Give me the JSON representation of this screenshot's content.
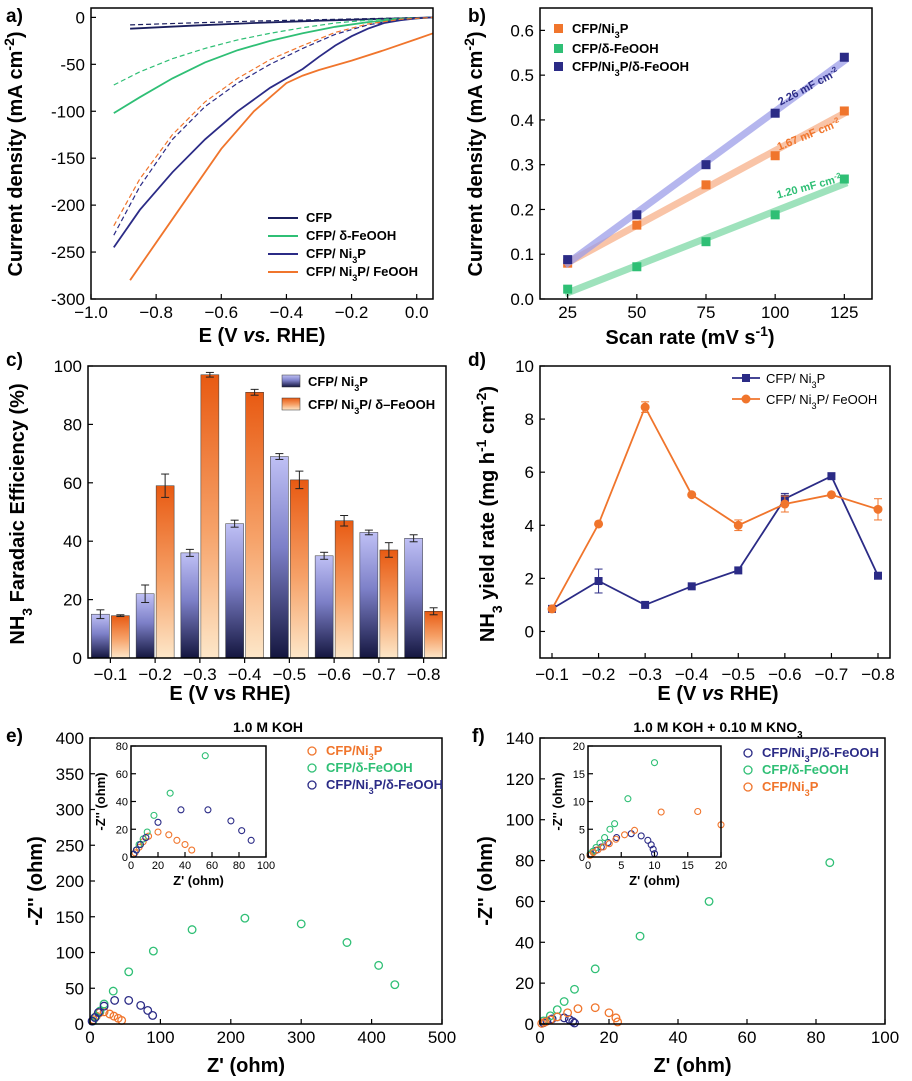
{
  "colors": {
    "navy": "#1b1f5e",
    "navy2": "#2b2b86",
    "green": "#2fbf75",
    "green_light": "#7dd8a6",
    "orange": "#f0752c",
    "orange_light": "#f7b08a",
    "purple_light": "#9c9ee8",
    "black": "#000000"
  },
  "chart_data": [
    {
      "panel": "a)",
      "type": "line",
      "xlabel": "E (V vs. RHE)",
      "ylabel": "Current density (mA cm-2)",
      "xlim": [
        -1.0,
        0.05
      ],
      "ylim": [
        -300,
        10
      ],
      "xticks": [
        "-1.0",
        "-0.8",
        "-0.6",
        "-0.4",
        "-0.2",
        "0.0"
      ],
      "yticks": [
        "0",
        "-50",
        "-100",
        "-150",
        "-200",
        "-250",
        "-300"
      ],
      "legend": [
        "CFP",
        "CFP/ δ-FeOOH",
        "CFP/ Ni3P",
        "CFP/ Ni3P/ FeOOH"
      ],
      "series": [
        {
          "name": "CFP",
          "color": "navy",
          "dash": false,
          "x": [
            -0.88,
            -0.7,
            -0.5,
            -0.3,
            -0.1,
            0.0,
            0.05
          ],
          "y": [
            -12,
            -9,
            -6,
            -3.5,
            -1.5,
            -0.5,
            0
          ]
        },
        {
          "name": "CFP",
          "color": "navy",
          "dash": true,
          "x": [
            -0.88,
            -0.7,
            -0.5,
            -0.3,
            -0.1,
            0.0,
            0.05
          ],
          "y": [
            -8,
            -6,
            -4,
            -2.5,
            -1,
            -0.3,
            0
          ]
        },
        {
          "name": "CFP/ δ-FeOOH",
          "color": "green",
          "dash": false,
          "x": [
            -0.93,
            -0.85,
            -0.75,
            -0.65,
            -0.55,
            -0.45,
            -0.35,
            -0.25,
            -0.15,
            -0.05,
            0.05
          ],
          "y": [
            -102,
            -85,
            -65,
            -48,
            -35,
            -25,
            -17,
            -10,
            -5,
            -2,
            0
          ]
        },
        {
          "name": "CFP/ δ-FeOOH",
          "color": "green",
          "dash": true,
          "x": [
            -0.93,
            -0.85,
            -0.75,
            -0.65,
            -0.55,
            -0.45,
            -0.35,
            -0.25,
            -0.15,
            -0.05,
            0.05
          ],
          "y": [
            -72,
            -58,
            -44,
            -33,
            -24,
            -17,
            -11,
            -6,
            -3,
            -1,
            0
          ]
        },
        {
          "name": "CFP/ Ni3P",
          "color": "navy2",
          "dash": false,
          "x": [
            -0.93,
            -0.85,
            -0.75,
            -0.65,
            -0.55,
            -0.45,
            -0.4,
            -0.35,
            -0.3,
            -0.25,
            -0.2,
            -0.15,
            -0.1,
            -0.05,
            0.0,
            0.05
          ],
          "y": [
            -245,
            -205,
            -165,
            -130,
            -100,
            -75,
            -65,
            -55,
            -42,
            -30,
            -20,
            -12,
            -6,
            -3,
            -1,
            0
          ]
        },
        {
          "name": "CFP/ Ni3P",
          "color": "navy2",
          "dash": true,
          "x": [
            -0.93,
            -0.85,
            -0.75,
            -0.65,
            -0.55,
            -0.45,
            -0.35,
            -0.25,
            -0.15,
            -0.05,
            0.05
          ],
          "y": [
            -232,
            -180,
            -130,
            -95,
            -70,
            -50,
            -33,
            -18,
            -8,
            -2,
            0
          ]
        },
        {
          "name": "CFP/ Ni3P/ FeOOH",
          "color": "orange",
          "dash": false,
          "x": [
            -0.88,
            -0.8,
            -0.7,
            -0.6,
            -0.5,
            -0.4,
            -0.35,
            -0.3,
            -0.2,
            -0.1,
            0.0,
            0.05
          ],
          "y": [
            -280,
            -240,
            -190,
            -140,
            -100,
            -70,
            -62,
            -56,
            -46,
            -35,
            -23,
            -17
          ]
        },
        {
          "name": "CFP/ Ni3P/ FeOOH",
          "color": "orange",
          "dash": true,
          "x": [
            -0.93,
            -0.85,
            -0.75,
            -0.65,
            -0.55,
            -0.45,
            -0.35,
            -0.25,
            -0.15,
            -0.05,
            0.05
          ],
          "y": [
            -222,
            -172,
            -125,
            -90,
            -65,
            -45,
            -30,
            -16,
            -7,
            -2,
            0
          ]
        }
      ]
    },
    {
      "panel": "b)",
      "type": "scatter",
      "xlabel": "Scan rate (mV s-1)",
      "ylabel": "Current density (mA cm-2)",
      "xlim": [
        15,
        135
      ],
      "ylim": [
        0,
        0.65
      ],
      "xticks": [
        "25",
        "50",
        "75",
        "100",
        "125"
      ],
      "yticks": [
        "0.0",
        "0.1",
        "0.2",
        "0.3",
        "0.4",
        "0.5",
        "0.6"
      ],
      "x": [
        25,
        50,
        75,
        100,
        125
      ],
      "legend": [
        "CFP/Ni3P",
        "CFP/δ-FeOOH",
        "CFP/Ni3P/δ-FeOOH"
      ],
      "series": [
        {
          "name": "CFP/Ni3P",
          "color": "orange",
          "fit_color": "orange_light",
          "y": [
            0.08,
            0.165,
            0.255,
            0.32,
            0.42
          ],
          "annotation": "1.67 mF cm-2"
        },
        {
          "name": "CFP/δ-FeOOH",
          "color": "green",
          "fit_color": "green_light",
          "y": [
            0.022,
            0.072,
            0.128,
            0.188,
            0.268
          ],
          "annotation": "1.20 mF cm-2"
        },
        {
          "name": "CFP/Ni3P/δ-FeOOH",
          "color": "navy2",
          "fit_color": "purple_light",
          "y": [
            0.088,
            0.188,
            0.3,
            0.415,
            0.54
          ],
          "annotation": "2.26 mF cm-2"
        }
      ]
    },
    {
      "panel": "c)",
      "type": "bar",
      "xlabel": "E (V vs RHE)",
      "ylabel": "NH3 Faradaic Efficiency (%)",
      "ylim": [
        0,
        100
      ],
      "categories": [
        "-0.1",
        "-0.2",
        "-0.3",
        "-0.4",
        "-0.5",
        "-0.6",
        "-0.7",
        "-0.8"
      ],
      "yticks": [
        "0",
        "20",
        "40",
        "60",
        "80",
        "100"
      ],
      "legend": [
        "CFP/ Ni3P",
        "CFP/ Ni3P/ δ–FeOOH"
      ],
      "series": [
        {
          "name": "CFP/ Ni3P",
          "values": [
            15,
            22,
            36,
            46,
            69,
            35,
            43,
            41
          ],
          "errors": [
            1.5,
            3,
            1.2,
            1.2,
            1,
            1.2,
            0.8,
            1.2
          ]
        },
        {
          "name": "CFP/ Ni3P/ δ–FeOOH",
          "values": [
            14.5,
            59,
            97,
            91,
            61,
            47,
            37,
            16
          ],
          "errors": [
            0.3,
            4,
            0.8,
            1,
            3,
            1.8,
            2.5,
            1.2
          ]
        }
      ]
    },
    {
      "panel": "d)",
      "type": "line",
      "xlabel": "E (V vs RHE)",
      "ylabel": "NH3 yield rate (mg h-1 cm-2)",
      "ylim": [
        -1,
        10
      ],
      "categories": [
        "-0.1",
        "-0.2",
        "-0.3",
        "-0.4",
        "-0.5",
        "-0.6",
        "-0.7",
        "-0.8"
      ],
      "yticks": [
        "0",
        "2",
        "4",
        "6",
        "8",
        "10"
      ],
      "legend": [
        "CFP/ Ni3P",
        "CFP/ Ni3P/ FeOOH"
      ],
      "series": [
        {
          "name": "CFP/ Ni3P",
          "color": "navy2",
          "marker": "square",
          "values": [
            0.85,
            1.9,
            1.0,
            1.7,
            2.3,
            5.0,
            5.85,
            2.1
          ],
          "errors": [
            0.05,
            0.45,
            0,
            0,
            0,
            0.2,
            0,
            0
          ]
        },
        {
          "name": "CFP/ Ni3P/ FeOOH",
          "color": "orange",
          "marker": "circle",
          "values": [
            0.85,
            4.05,
            8.45,
            5.15,
            4.0,
            4.8,
            5.15,
            4.6
          ],
          "errors": [
            0.05,
            0,
            0.2,
            0,
            0.2,
            0.3,
            0,
            0.4
          ]
        }
      ]
    },
    {
      "panel": "e)",
      "type": "scatter",
      "title": "1.0 M KOH",
      "xlabel": "Z' (ohm)",
      "ylabel": "-Z'' (ohm)",
      "xlim": [
        0,
        500
      ],
      "ylim": [
        0,
        400
      ],
      "xticks": [
        "0",
        "100",
        "200",
        "300",
        "400",
        "500"
      ],
      "yticks": [
        "0",
        "50",
        "100",
        "150",
        "200",
        "250",
        "300",
        "350",
        "400"
      ],
      "legend": [
        "CFP/Ni3P",
        "CFP/δ-FeOOH",
        "CFP/Ni3P/δ-FeOOH"
      ],
      "series": [
        {
          "name": "CFP/Ni3P",
          "color": "orange",
          "x": [
            5,
            9,
            14,
            20,
            28,
            34,
            40,
            45
          ],
          "y": [
            6,
            11,
            16,
            17,
            14,
            11,
            8,
            5
          ]
        },
        {
          "name": "CFP/δ-FeOOH",
          "color": "green",
          "x": [
            4,
            8,
            14,
            20,
            33,
            55,
            90,
            145,
            220,
            300,
            365,
            410,
            433
          ],
          "y": [
            4,
            10,
            18,
            28,
            46,
            73,
            102,
            132,
            148,
            140,
            114,
            82,
            55
          ]
        },
        {
          "name": "CFP/Ni3P/δ-FeOOH",
          "color": "navy2",
          "x": [
            3,
            7,
            12,
            20,
            35,
            55,
            72,
            82,
            89
          ],
          "y": [
            4,
            9,
            16,
            25,
            33,
            33,
            26,
            19,
            12
          ]
        }
      ],
      "inset": {
        "xlim": [
          0,
          100
        ],
        "ylim": [
          0,
          80
        ],
        "xticks": [
          "0",
          "20",
          "40",
          "60",
          "80",
          "100"
        ],
        "yticks": [
          "0",
          "20",
          "40",
          "60",
          "80"
        ],
        "xlabel": "Z' (ohm)",
        "ylabel": "-Z'' (ohm)",
        "series": [
          {
            "name": "CFP/Ni3P",
            "color": "orange",
            "x": [
              3,
              6,
              9,
              13,
              20,
              28,
              34,
              40,
              45
            ],
            "y": [
              3,
              7,
              11,
              15,
              18,
              16,
              12,
              9,
              5
            ]
          },
          {
            "name": "CFP/δ-FeOOH",
            "color": "green",
            "x": [
              2,
              4,
              6,
              9,
              12,
              17,
              29,
              55
            ],
            "y": [
              2,
              5,
              9,
              13,
              18,
              30,
              46,
              73
            ]
          },
          {
            "name": "CFP/Ni3P/δ-FeOOH",
            "color": "navy2",
            "x": [
              2,
              4,
              7,
              11,
              20,
              37,
              57,
              74,
              82,
              89
            ],
            "y": [
              2,
              5,
              9,
              14,
              25,
              34,
              34,
              26,
              19,
              12
            ]
          }
        ]
      }
    },
    {
      "panel": "f)",
      "type": "scatter",
      "title": "1.0 M KOH + 0.10 M KNO3",
      "xlabel": "Z' (ohm)",
      "ylabel": "-Z'' (ohm)",
      "xlim": [
        0,
        100
      ],
      "ylim": [
        0,
        140
      ],
      "xticks": [
        "0",
        "20",
        "40",
        "60",
        "80",
        "100"
      ],
      "yticks": [
        "0",
        "20",
        "40",
        "60",
        "80",
        "100",
        "120",
        "140"
      ],
      "legend": [
        "CFP/Ni3P/δ-FeOOH",
        "CFP/δ-FeOOH",
        "CFP/Ni3P"
      ],
      "series": [
        {
          "name": "CFP/Ni3P/δ-FeOOH",
          "color": "navy2",
          "x": [
            1,
            2,
            3.5,
            5,
            7,
            8.5,
            9.5,
            10
          ],
          "y": [
            0.6,
            1.5,
            2.5,
            3.5,
            3.0,
            2.2,
            1.2,
            0.5
          ]
        },
        {
          "name": "CFP/δ-FeOOH",
          "color": "green",
          "x": [
            1,
            3,
            5,
            7,
            10,
            16,
            29,
            49,
            84
          ],
          "y": [
            1.5,
            4,
            7,
            11,
            17,
            27,
            43,
            60,
            79
          ]
        },
        {
          "name": "CFP/Ni3P",
          "color": "orange",
          "x": [
            0.5,
            1.5,
            3,
            5,
            8,
            11,
            16,
            20,
            22,
            22.5
          ],
          "y": [
            0.3,
            1,
            2,
            3.5,
            5.5,
            7.5,
            8,
            5.5,
            3,
            1
          ]
        }
      ],
      "inset": {
        "xlim": [
          0,
          20
        ],
        "ylim": [
          0,
          20
        ],
        "xticks": [
          "0",
          "5",
          "10",
          "15",
          "20"
        ],
        "yticks": [
          "0",
          "5",
          "10",
          "15",
          "20"
        ],
        "xlabel": "Z' (ohm)",
        "ylabel": "-Z'' (ohm)",
        "series": [
          {
            "name": "CFP/Ni3P/δ-FeOOH",
            "color": "navy2",
            "x": [
              0.5,
              1.2,
              2,
              3,
              4.3,
              6.5,
              8,
              9,
              9.5,
              9.8,
              10
            ],
            "y": [
              0.5,
              1.2,
              1.8,
              2.6,
              3.5,
              4.2,
              3.8,
              3.0,
              2.2,
              1.4,
              0.6
            ]
          },
          {
            "name": "CFP/δ-FeOOH",
            "color": "green",
            "x": [
              0.3,
              0.7,
              1.2,
              1.8,
              2.5,
              3.3,
              4,
              6,
              10
            ],
            "y": [
              0.5,
              1,
              1.7,
              2.5,
              3.5,
              5,
              6,
              10.5,
              17
            ]
          },
          {
            "name": "CFP/Ni3P",
            "color": "orange",
            "x": [
              0.3,
              0.8,
              1.5,
              2.3,
              3.2,
              4.2,
              5.5,
              7,
              11,
              16.5,
              20
            ],
            "y": [
              0.3,
              0.8,
              1.3,
              1.8,
              2.4,
              3.2,
              4.0,
              4.8,
              8.1,
              8.2,
              5.8
            ]
          }
        ]
      }
    }
  ]
}
